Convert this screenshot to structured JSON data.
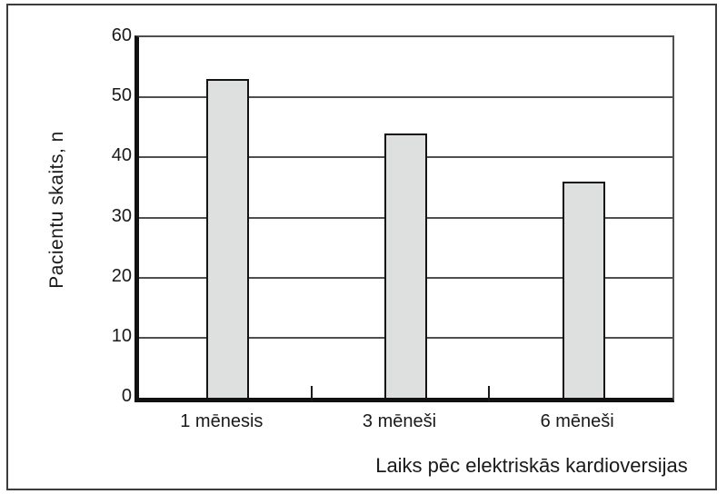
{
  "figure": {
    "background_color": "#ffffff",
    "frame_border_color": "#3c3c3c"
  },
  "chart_data": {
    "type": "bar",
    "categories": [
      "1 mēnesis",
      "3 mēneši",
      "6 mēneši"
    ],
    "values": [
      53,
      44,
      36
    ],
    "title": "",
    "xlabel": "Laiks pēc elektriskās kardioversijas",
    "ylabel": "Pacientu skaits, n",
    "ylim": [
      0,
      60
    ],
    "yticks": [
      0,
      10,
      20,
      30,
      40,
      50,
      60
    ],
    "grid": "horizontal",
    "legend": "none",
    "bar_fill_color": "#dee0e0",
    "bar_border_color": "#141414",
    "gridline_color": "#4f4f4f",
    "axis_color": "#111111",
    "text_color": "#1a1a1a"
  }
}
